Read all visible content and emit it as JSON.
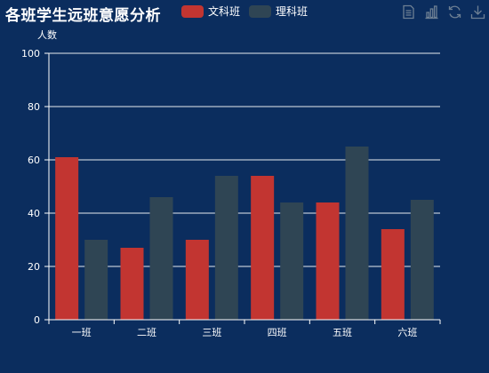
{
  "colors": {
    "background": "#0b2d5e",
    "series_arts": "#c23531",
    "series_science": "#2f4554",
    "axis": "#ffffff",
    "toolbox_icon": "#6d7f93"
  },
  "toolbox": {
    "icons": [
      "data-view-icon",
      "bar-chart-icon",
      "restore-icon",
      "download-icon"
    ]
  },
  "chart_data": {
    "type": "bar",
    "title": "各班学生远班意愿分析",
    "ylabel": "人数",
    "xlabel": "",
    "categories": [
      "一班",
      "二班",
      "三班",
      "四班",
      "五班",
      "六班"
    ],
    "series": [
      {
        "name": "文科班",
        "values": [
          61,
          27,
          30,
          54,
          44,
          34
        ]
      },
      {
        "name": "理科班",
        "values": [
          30,
          46,
          54,
          44,
          65,
          45
        ]
      }
    ],
    "ylim": [
      0,
      100
    ],
    "yticks": [
      "0",
      "20",
      "40",
      "60",
      "80",
      "100"
    ],
    "grid": true,
    "legend_position": "top"
  }
}
